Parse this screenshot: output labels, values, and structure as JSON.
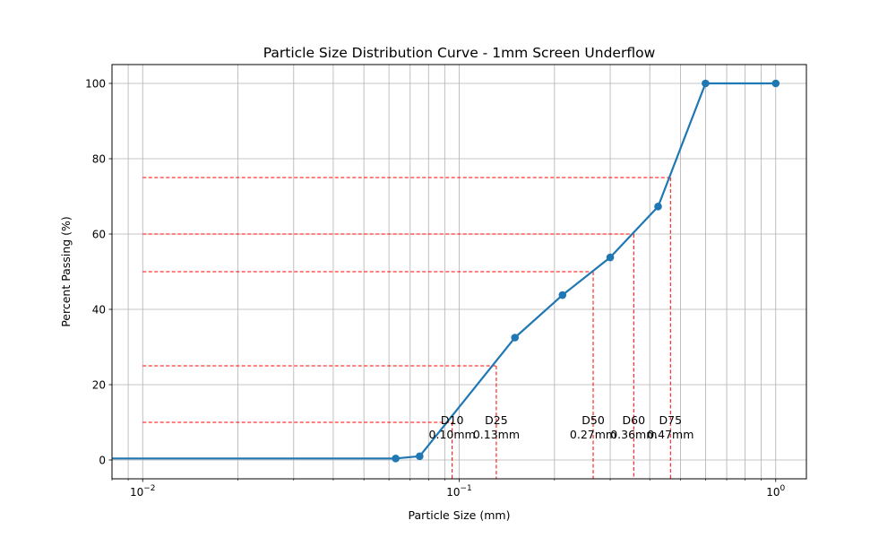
{
  "chart_data": {
    "type": "line",
    "title": "Particle Size Distribution Curve - 1mm Screen Underflow",
    "xlabel": "Particle Size (mm)",
    "ylabel": "Percent Passing (%)",
    "x_scale": "log",
    "xlim": [
      0.008,
      1.25
    ],
    "ylim": [
      -5,
      105
    ],
    "grid": true,
    "x_ticks": [
      {
        "value": 0.01,
        "label": "10",
        "exp": "−2"
      },
      {
        "value": 0.1,
        "label": "10",
        "exp": "−1"
      },
      {
        "value": 1,
        "label": "10",
        "exp": "0"
      }
    ],
    "y_ticks": [
      {
        "value": 0,
        "label": "0"
      },
      {
        "value": 20,
        "label": "20"
      },
      {
        "value": 40,
        "label": "40"
      },
      {
        "value": 60,
        "label": "60"
      },
      {
        "value": 80,
        "label": "80"
      },
      {
        "value": 100,
        "label": "100"
      }
    ],
    "series": [
      {
        "color": "#1f77b4",
        "x": [
          0.001,
          0.063,
          0.075,
          0.15,
          0.212,
          0.3,
          0.425,
          0.6,
          1.0
        ],
        "y": [
          0.4,
          0.4,
          1.0,
          32.5,
          43.8,
          53.8,
          67.3,
          100,
          100
        ]
      }
    ],
    "annotations": [
      {
        "name": "D10",
        "label": "D10",
        "value_label": "0.10mm",
        "x": 0.095,
        "y": 10
      },
      {
        "name": "D25",
        "label": "D25",
        "value_label": "0.13mm",
        "x": 0.131,
        "y": 25
      },
      {
        "name": "D50",
        "label": "D50",
        "value_label": "0.27mm",
        "x": 0.265,
        "y": 50
      },
      {
        "name": "D60",
        "label": "D60",
        "value_label": "0.36mm",
        "x": 0.356,
        "y": 60
      },
      {
        "name": "D75",
        "label": "D75",
        "value_label": "0.47mm",
        "x": 0.465,
        "y": 75
      }
    ],
    "annotation_line_start_x": 0.01,
    "annotation_color": "#ff0000"
  }
}
